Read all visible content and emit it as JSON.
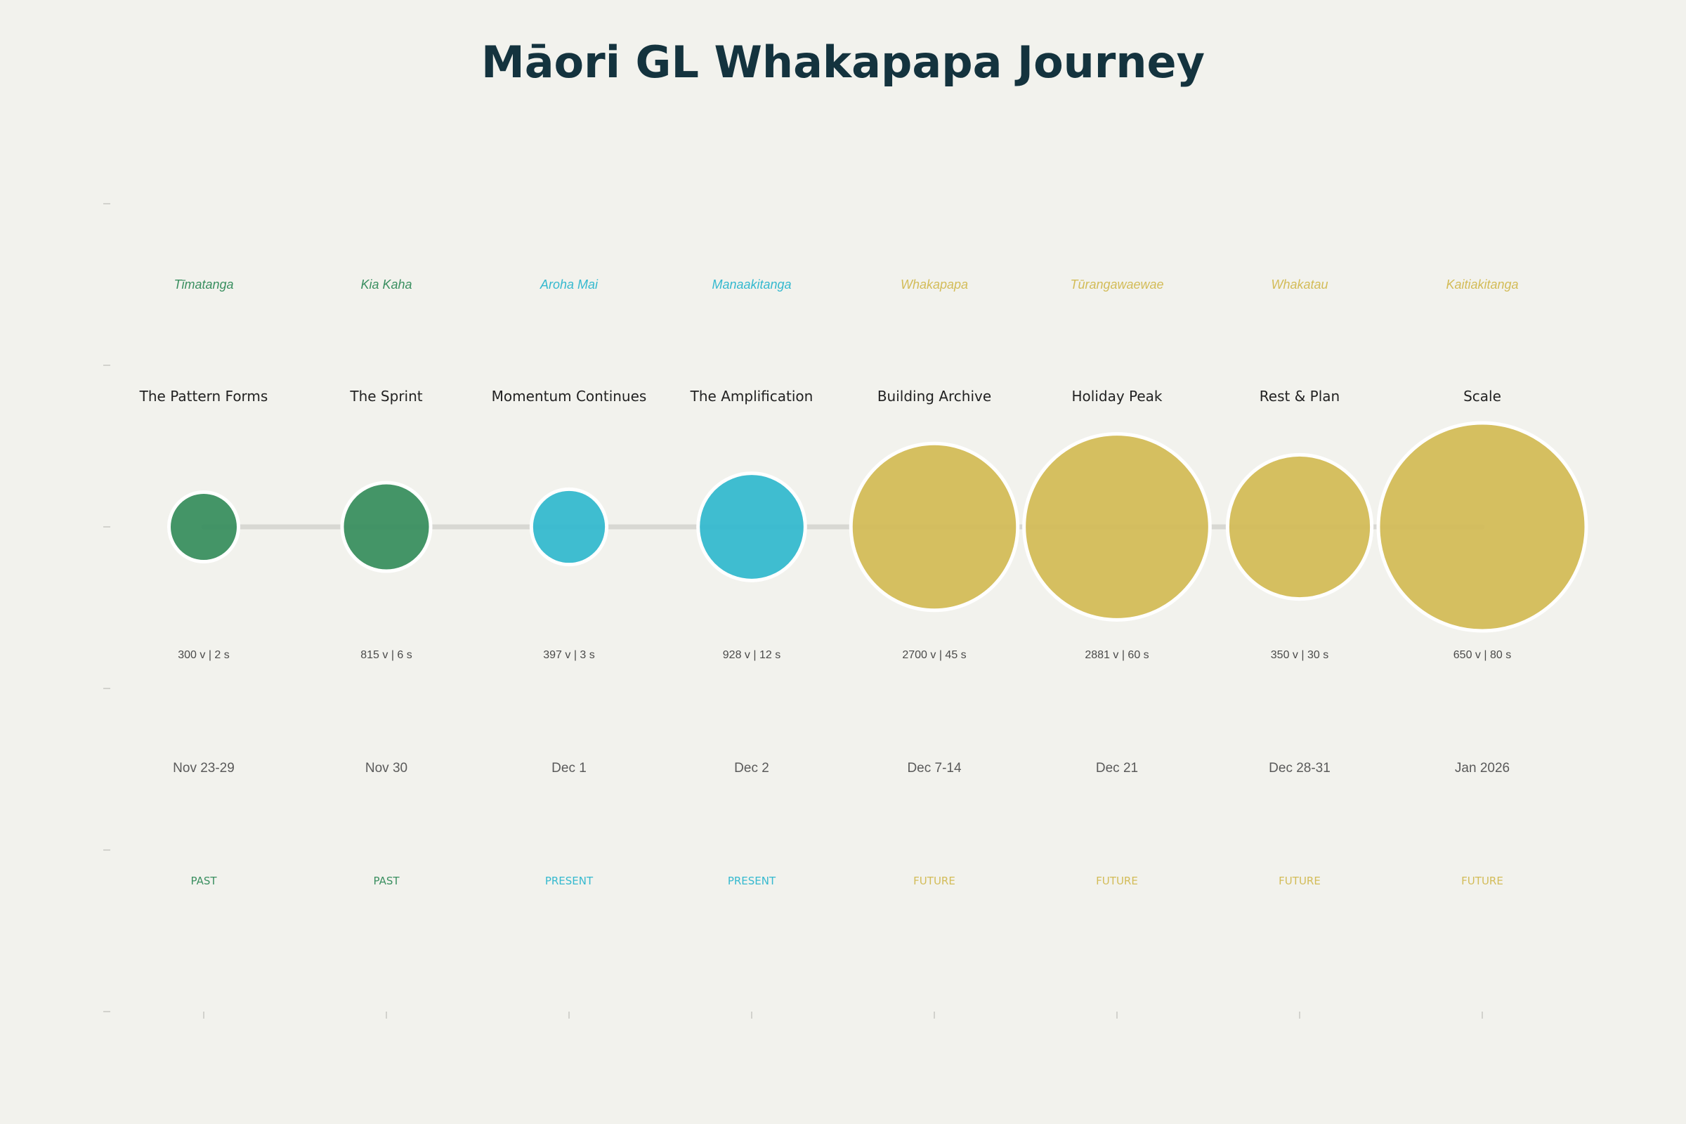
{
  "chart_data": {
    "type": "scatter",
    "title": "Māori GL Whakapapa Journey",
    "xlabel": "",
    "ylabel": "",
    "grid": false,
    "legend": "none",
    "phase_colors": {
      "PAST": "#3a8f60",
      "PRESENT": "#35b9cf",
      "FUTURE": "#d3bc58"
    },
    "connector_color": "#d8d8d3",
    "points": [
      {
        "date": "Nov 23-29",
        "maori": "Tīmatanga",
        "title": "The Pattern Forms",
        "views": 300,
        "seconds": 2,
        "stat": "300 v | 2 s",
        "phase": "PAST"
      },
      {
        "date": "Nov 30",
        "maori": "Kia Kaha",
        "title": "The Sprint",
        "views": 815,
        "seconds": 6,
        "stat": "815 v | 6 s",
        "phase": "PAST"
      },
      {
        "date": "Dec 1",
        "maori": "Aroha Mai",
        "title": "Momentum Continues",
        "views": 397,
        "seconds": 3,
        "stat": "397 v | 3 s",
        "phase": "PRESENT"
      },
      {
        "date": "Dec 2",
        "maori": "Manaakitanga",
        "title": "The Amplification",
        "views": 928,
        "seconds": 12,
        "stat": "928 v | 12 s",
        "phase": "PRESENT"
      },
      {
        "date": "Dec 7-14",
        "maori": "Whakapapa",
        "title": "Building Archive",
        "views": 2700,
        "seconds": 45,
        "stat": "2700 v | 45 s",
        "phase": "FUTURE"
      },
      {
        "date": "Dec 21",
        "maori": "Tūrangawaewae",
        "title": "Holiday Peak",
        "views": 2881,
        "seconds": 60,
        "stat": "2881 v | 60 s",
        "phase": "FUTURE"
      },
      {
        "date": "Dec 28-31",
        "maori": "Whakatau",
        "title": "Rest & Plan",
        "views": 350,
        "seconds": 30,
        "stat": "350 v | 30 s",
        "phase": "FUTURE"
      },
      {
        "date": "Jan 2026",
        "maori": "Kaitiakitanga",
        "title": "Scale",
        "views": 650,
        "seconds": 80,
        "stat": "650 v | 80 s",
        "phase": "FUTURE"
      }
    ]
  }
}
